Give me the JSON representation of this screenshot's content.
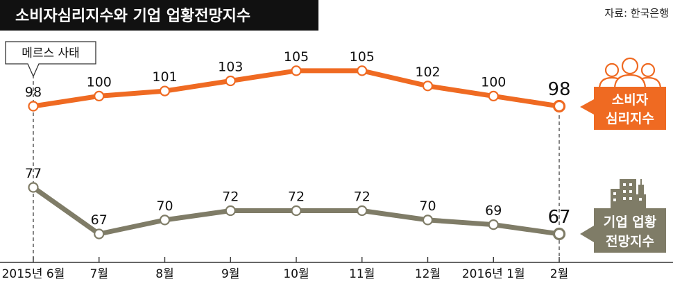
{
  "title": "소비자심리지수와 기업 업황전망지수",
  "source": "자료: 한국은행",
  "callout": "메르스 사태",
  "colors": {
    "consumer": "#EF6A22",
    "business": "#7F7C67",
    "title_bg": "#111111",
    "axis": "#333333"
  },
  "chart_data": {
    "type": "line",
    "categories": [
      "2015년 6월",
      "7월",
      "8월",
      "9월",
      "10월",
      "11월",
      "12월",
      "2016년 1월",
      "2월"
    ],
    "series": [
      {
        "name": "소비자 심리지수",
        "name_lines": [
          "소비자",
          "심리지수"
        ],
        "values": [
          98,
          100,
          101,
          103,
          105,
          105,
          102,
          100,
          98
        ]
      },
      {
        "name": "기업 업황 전망지수",
        "name_lines": [
          "기업 업황",
          "전망지수"
        ],
        "values": [
          77,
          67,
          70,
          72,
          72,
          72,
          70,
          69,
          67
        ]
      }
    ],
    "xlabel": "",
    "ylabel": "",
    "annotations": [
      {
        "category": "2015년 6월",
        "text": "메르스 사태"
      }
    ]
  }
}
